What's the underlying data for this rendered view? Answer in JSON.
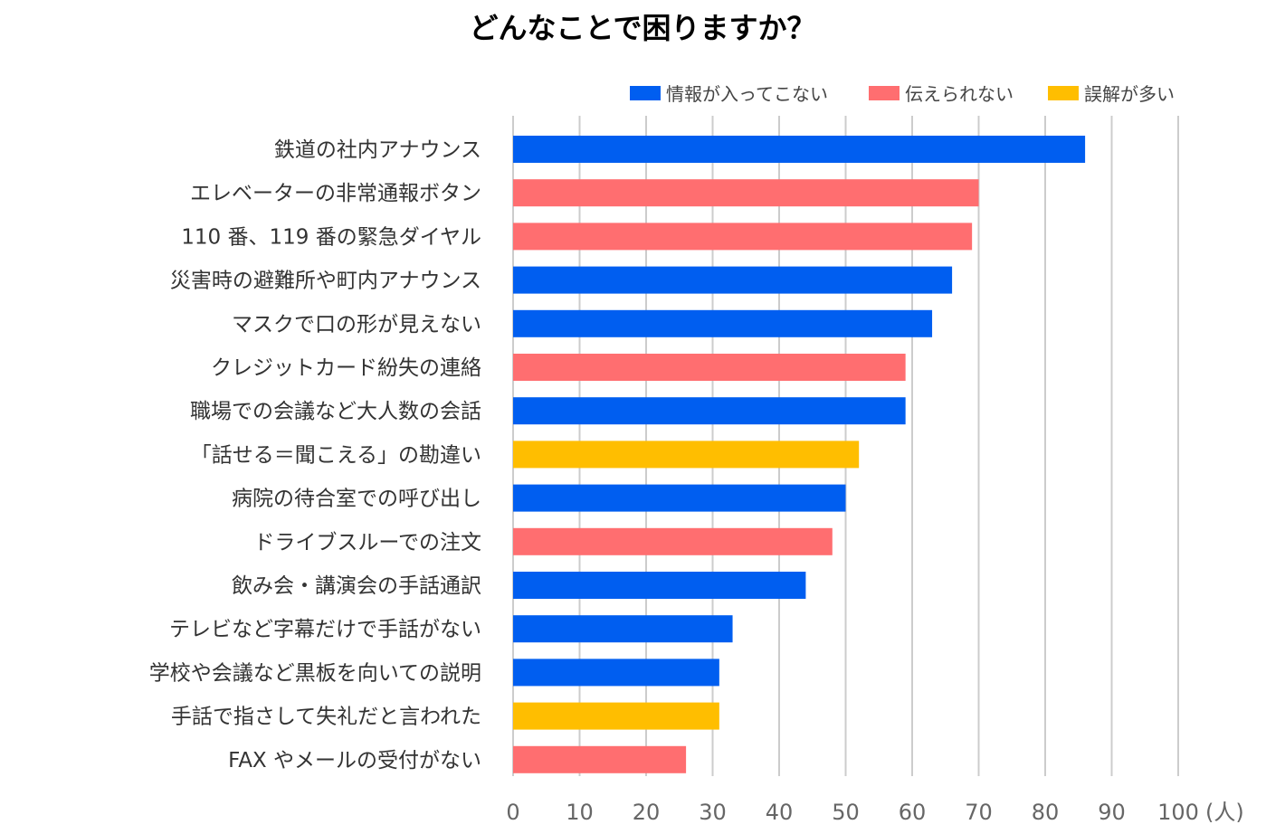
{
  "chart_data": {
    "type": "bar",
    "orientation": "horizontal",
    "title": "どんなことで困りますか？",
    "xlabel": "(人)",
    "xlim": [
      0,
      100
    ],
    "xticks": [
      0,
      10,
      20,
      30,
      40,
      50,
      60,
      70,
      80,
      90,
      100
    ],
    "grid": true,
    "legend_position": "top-right",
    "legend": [
      {
        "name": "情報が入ってこない",
        "color": "#005EF0"
      },
      {
        "name": "伝えられない",
        "color": "#FF6E70"
      },
      {
        "name": "誤解が多い",
        "color": "#FFBE00"
      }
    ],
    "categories": [
      "鉄道の社内アナウンス",
      "エレベーターの非常通報ボタン",
      "110 番、119 番の緊急ダイヤル",
      "災害時の避難所や町内アナウンス",
      "マスクで口の形が見えない",
      "クレジットカード紛失の連絡",
      "職場での会議など大人数の会話",
      "「話せる＝聞こえる」の勘違い",
      "病院の待合室での呼び出し",
      "ドライブスルーでの注文",
      "飲み会・講演会の手話通訳",
      "テレビなど字幕だけで手話がない",
      "学校や会議など黒板を向いての説明",
      "手話で指さして失礼だと言われた",
      "FAX やメールの受付がない"
    ],
    "values": [
      86,
      70,
      69,
      66,
      63,
      59,
      59,
      52,
      50,
      48,
      44,
      33,
      31,
      31,
      26
    ],
    "series_index": [
      0,
      1,
      1,
      0,
      0,
      1,
      0,
      2,
      0,
      1,
      0,
      0,
      0,
      2,
      1
    ]
  }
}
